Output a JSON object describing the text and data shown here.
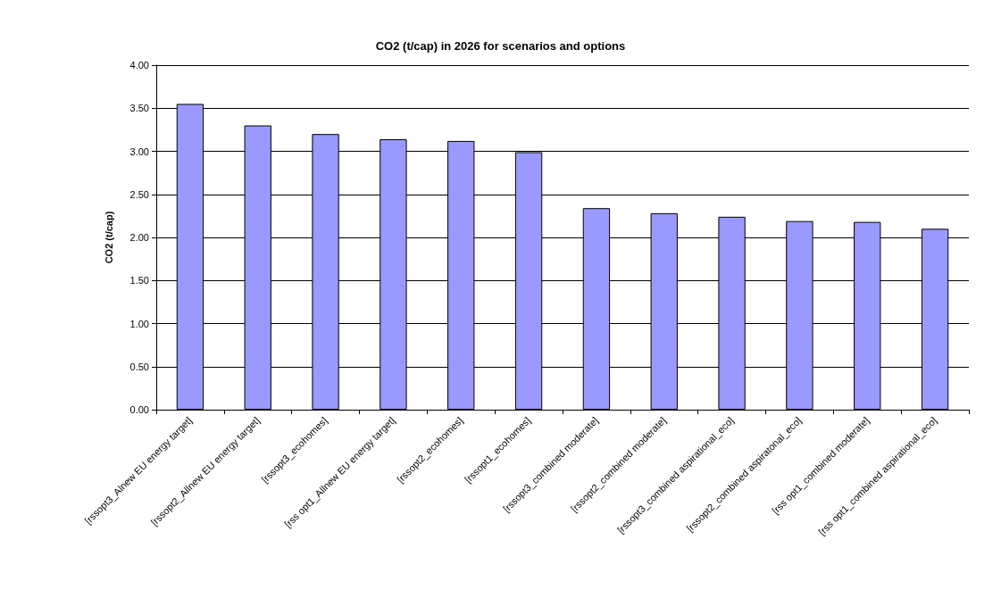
{
  "chart_data": {
    "type": "bar",
    "title": "CO2 (t/cap) in 2026 for scenarios and options",
    "ylabel": "CO2 (t/cap)",
    "categories": [
      "[rssopt3_Alnew EU energy target]",
      "[rssopt2_Allnew EU energy target]",
      "[rssopt3_ecohomes]",
      "[rss opt1_Allnew EU energy target]",
      "[rssopt2_ecohomes]",
      "[rssopt1_ecohomes]",
      "[rssopt3_combined moderate]",
      "[rssopt2_combined moderate]",
      "[rssopt3_combined aspirational_eco]",
      "[rssopt2_combined aspiratonal_eco]",
      "[rss opt1_combined moderate]",
      "[rss opt1_combined aspirational_eco]"
    ],
    "values": [
      3.55,
      3.3,
      3.2,
      3.14,
      3.12,
      2.99,
      2.34,
      2.28,
      2.24,
      2.19,
      2.18,
      2.1
    ],
    "color": "#9999ff",
    "ylim": [
      0,
      4
    ],
    "yticks": [
      {
        "value": 0,
        "label": "0.00"
      },
      {
        "value": 0.5,
        "label": "0.50"
      },
      {
        "value": 1,
        "label": "1.00"
      },
      {
        "value": 1.5,
        "label": "1.50"
      },
      {
        "value": 2,
        "label": "2.00"
      },
      {
        "value": 2.5,
        "label": "2.50"
      },
      {
        "value": 3,
        "label": "3.00"
      },
      {
        "value": 3.5,
        "label": "3.50"
      },
      {
        "value": 4,
        "label": "4.00"
      }
    ],
    "grid": "y"
  }
}
